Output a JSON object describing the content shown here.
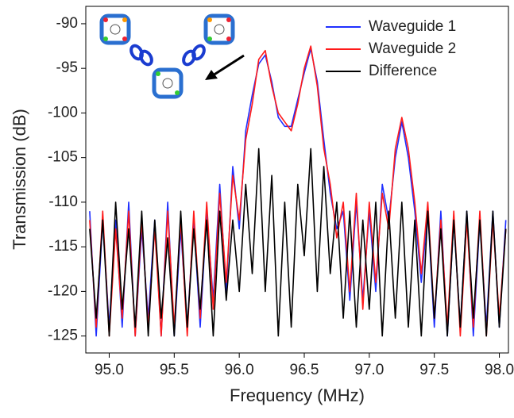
{
  "chart_data": {
    "type": "line",
    "x_label": "Frequency (MHz)",
    "y_label": "Transmission (dB)",
    "xlim": [
      94.82,
      98.07
    ],
    "ylim": [
      -126.9,
      -88.05
    ],
    "xticks": [
      {
        "value": 95,
        "label": "95.0"
      },
      {
        "value": 95.5,
        "label": "95.5"
      },
      {
        "value": 96,
        "label": "96.0"
      },
      {
        "value": 96.5,
        "label": "96.5"
      },
      {
        "value": 97,
        "label": "97.0"
      },
      {
        "value": 97.5,
        "label": "97.5"
      },
      {
        "value": 98,
        "label": "98.0"
      }
    ],
    "yticks": [
      -90,
      -95,
      -100,
      -105,
      -110,
      -115,
      -120,
      -125
    ],
    "legend": "upper right",
    "x": [
      94.85,
      94.9,
      94.95,
      95.0,
      95.05,
      95.1,
      95.15,
      95.2,
      95.25,
      95.3,
      95.35,
      95.4,
      95.45,
      95.5,
      95.55,
      95.6,
      95.65,
      95.7,
      95.75,
      95.8,
      95.85,
      95.9,
      95.95,
      96.0,
      96.05,
      96.1,
      96.15,
      96.2,
      96.25,
      96.3,
      96.35,
      96.4,
      96.45,
      96.5,
      96.55,
      96.6,
      96.65,
      96.7,
      96.75,
      96.8,
      96.85,
      96.9,
      96.95,
      97.0,
      97.05,
      97.1,
      97.15,
      97.2,
      97.25,
      97.3,
      97.35,
      97.4,
      97.45,
      97.5,
      97.55,
      97.6,
      97.65,
      97.7,
      97.75,
      97.8,
      97.85,
      97.9,
      97.95,
      98.0,
      98.05
    ],
    "series": [
      {
        "name": "Waveguide 1",
        "color": "#1f2fff",
        "values": [
          -111,
          -125,
          -112,
          -124,
          -112,
          -124,
          -110,
          -125,
          -113,
          -123,
          -112,
          -125,
          -110,
          -125,
          -113,
          -124,
          -112,
          -124,
          -111,
          -121,
          -108,
          -120,
          -106,
          -113,
          -102,
          -98,
          -94.5,
          -93.5,
          -96.5,
          -100.5,
          -101.5,
          -101.5,
          -98.5,
          -95.5,
          -92.8,
          -96.5,
          -103,
          -109,
          -113,
          -111,
          -121,
          -110,
          -121,
          -111,
          -120,
          -108,
          -112,
          -105,
          -101,
          -105,
          -111,
          -119,
          -111,
          -124,
          -111,
          -125,
          -112,
          -124,
          -111,
          -125,
          -112,
          -124,
          -111,
          -124,
          -112
        ]
      },
      {
        "name": "Waveguide 2",
        "color": "#ff1a1a",
        "values": [
          -112,
          -124,
          -111,
          -125,
          -113,
          -123,
          -111,
          -125,
          -112,
          -124,
          -113,
          -125,
          -111,
          -124,
          -112,
          -125,
          -111,
          -123,
          -110,
          -122,
          -109,
          -119,
          -107,
          -112,
          -103,
          -99,
          -94,
          -93,
          -97,
          -100,
          -101,
          -102,
          -99,
          -95,
          -92.5,
          -97,
          -104,
          -108,
          -114,
          -110,
          -120,
          -109,
          -122,
          -110,
          -119,
          -109,
          -113,
          -104,
          -100.5,
          -104,
          -110,
          -118,
          -110,
          -123,
          -112,
          -124,
          -111,
          -125,
          -112,
          -124,
          -111,
          -125,
          -112,
          -123,
          -113
        ]
      },
      {
        "name": "Difference",
        "color": "#000000",
        "values": [
          -113,
          -123,
          -112,
          -125,
          -110,
          -122,
          -113,
          -124,
          -111,
          -125,
          -112,
          -123,
          -114,
          -125,
          -111,
          -124,
          -113,
          -122,
          -112,
          -125,
          -111,
          -121,
          -112,
          -120,
          -108,
          -118,
          -104,
          -120,
          -107,
          -125,
          -110,
          -124,
          -108,
          -116,
          -104,
          -120,
          -106,
          -118,
          -110,
          -123,
          -111,
          -124,
          -112,
          -122,
          -110,
          -125,
          -111,
          -123,
          -110,
          -124,
          -112,
          -125,
          -111,
          -123,
          -113,
          -125,
          -112,
          -124,
          -111,
          -123,
          -112,
          -125,
          -111,
          -124,
          -113
        ]
      }
    ]
  }
}
